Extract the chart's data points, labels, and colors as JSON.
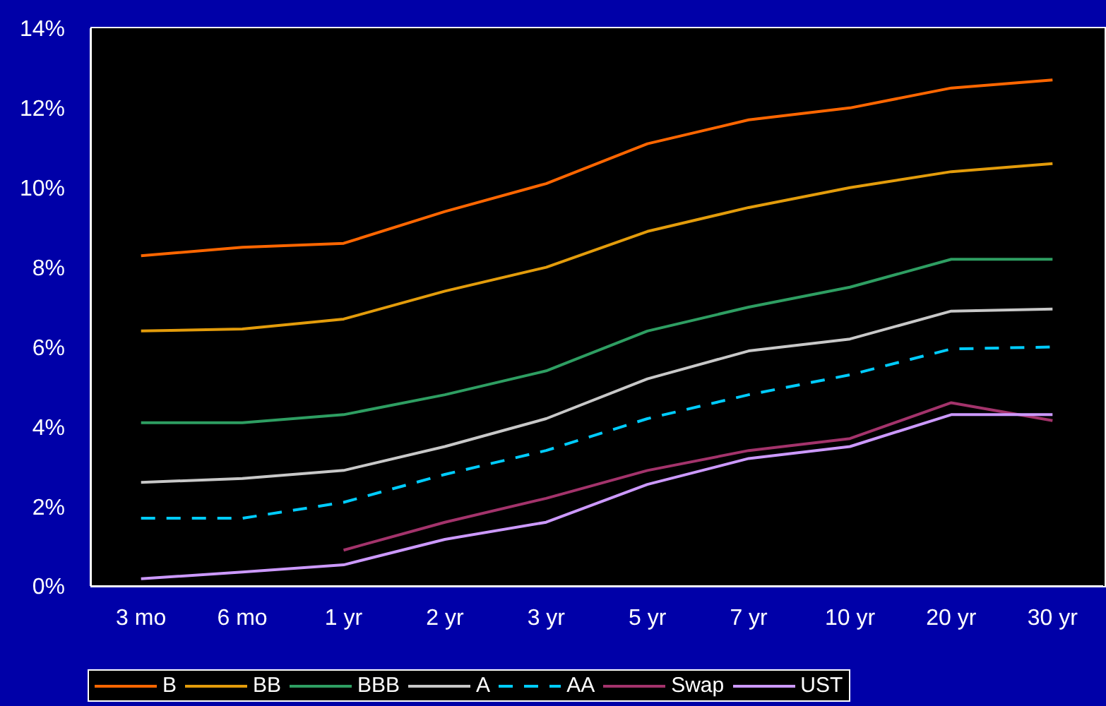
{
  "chart_data": {
    "type": "line",
    "categories": [
      "3 mo",
      "6 mo",
      "1 yr",
      "2 yr",
      "3 yr",
      "5 yr",
      "7 yr",
      "10 yr",
      "20 yr",
      "30 yr"
    ],
    "ylim": [
      0,
      0.14
    ],
    "yticks": [
      {
        "value": 0,
        "label": "0%"
      },
      {
        "value": 0.02,
        "label": "2%"
      },
      {
        "value": 0.04,
        "label": "4%"
      },
      {
        "value": 0.06,
        "label": "6%"
      },
      {
        "value": 0.08,
        "label": "8%"
      },
      {
        "value": 0.1,
        "label": "10%"
      },
      {
        "value": 0.12,
        "label": "12%"
      },
      {
        "value": 0.14,
        "label": "14%"
      }
    ],
    "legend": "bottom",
    "marker": "none",
    "series": [
      {
        "name": "B",
        "color": "#ff6600",
        "line_style": "solid",
        "values": [
          0.0829,
          0.085,
          0.086,
          0.094,
          0.101,
          0.111,
          0.117,
          0.12,
          0.125,
          0.127
        ]
      },
      {
        "name": "BB",
        "color": "#e39c0b",
        "line_style": "solid",
        "values": [
          0.064,
          0.0645,
          0.067,
          0.074,
          0.08,
          0.089,
          0.095,
          0.1,
          0.104,
          0.106
        ]
      },
      {
        "name": "BBB",
        "color": "#2e9e62",
        "line_style": "solid",
        "values": [
          0.041,
          0.041,
          0.043,
          0.048,
          0.054,
          0.064,
          0.07,
          0.075,
          0.082,
          0.082
        ]
      },
      {
        "name": "A",
        "color": "#c8c8c8",
        "line_style": "solid",
        "values": [
          0.026,
          0.027,
          0.029,
          0.035,
          0.042,
          0.052,
          0.059,
          0.062,
          0.069,
          0.0695
        ]
      },
      {
        "name": "AA",
        "color": "#00ccff",
        "line_style": "dashed",
        "values": [
          0.017,
          0.017,
          0.021,
          0.028,
          0.034,
          0.042,
          0.048,
          0.053,
          0.0595,
          0.06
        ]
      },
      {
        "name": "Swap",
        "color": "#a3336b",
        "line_style": "solid",
        "values": [
          null,
          null,
          0.009,
          0.016,
          0.022,
          0.029,
          0.034,
          0.037,
          0.046,
          0.0415
        ]
      },
      {
        "name": "UST",
        "color": "#cc99ff",
        "line_style": "solid",
        "values": [
          0.0018,
          0.0035,
          0.0053,
          0.0117,
          0.016,
          0.0255,
          0.032,
          0.035,
          0.043,
          0.043
        ]
      }
    ]
  }
}
